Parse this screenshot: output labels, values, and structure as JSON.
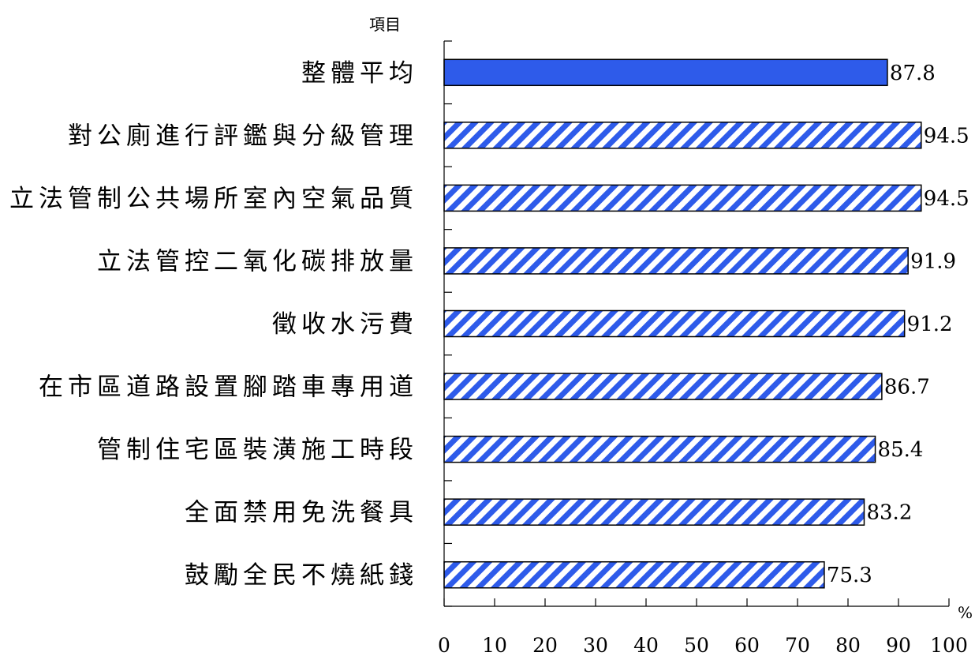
{
  "chart_data": {
    "type": "bar",
    "orientation": "horizontal",
    "ylabel": "項目",
    "xlabel": "",
    "unit": "%",
    "xlim": [
      0,
      100
    ],
    "xticks": [
      0,
      10,
      20,
      30,
      40,
      50,
      60,
      70,
      80,
      90,
      100
    ],
    "categories": [
      "整體平均",
      "對公廁進行評鑑與分級管理",
      "立法管制公共場所室內空氣品質",
      "立法管控二氧化碳排放量",
      "徵收水污費",
      "在市區道路設置腳踏車專用道",
      "管制住宅區裝潢施工時段",
      "全面禁用免洗餐具",
      "鼓勵全民不燒紙錢"
    ],
    "values": [
      87.8,
      94.5,
      94.5,
      91.9,
      91.2,
      86.7,
      85.4,
      83.2,
      75.3
    ],
    "value_labels": [
      "87.8",
      "94.5",
      "94.5",
      "91.9",
      "91.2",
      "86.7",
      "85.4",
      "83.2",
      "75.3"
    ],
    "grid": false,
    "colors": {
      "highlight_fill": "#2e5bea",
      "hatch_color": "#2e5bea",
      "bar_outline": "#000000"
    }
  }
}
